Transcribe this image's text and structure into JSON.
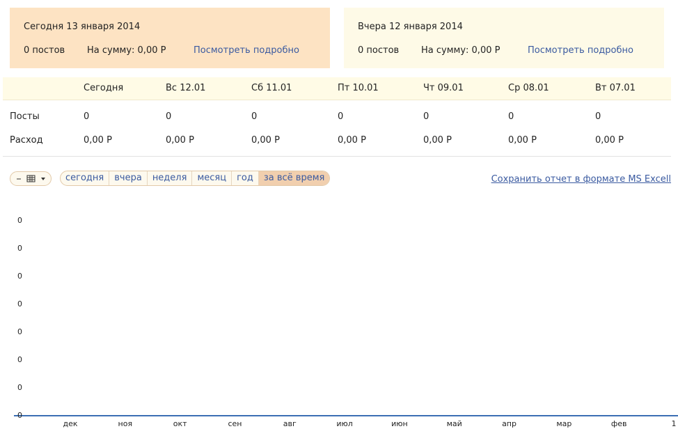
{
  "summary": [
    {
      "title": "Сегодня 13 января 2014",
      "posts": "0 постов",
      "sum": "На сумму: 0,00 Р",
      "link": "Посмотреть подробно"
    },
    {
      "title": "Вчера 12 января 2014",
      "posts": "0 постов",
      "sum": "На сумму: 0,00 Р",
      "link": "Посмотреть подробно"
    }
  ],
  "table": {
    "columns": [
      "Сегодня",
      "Вс 12.01",
      "Сб 11.01",
      "Пт 10.01",
      "Чт 09.01",
      "Ср 08.01",
      "Вт 07.01"
    ],
    "rows": [
      {
        "label": "Посты",
        "cells": [
          "0",
          "0",
          "0",
          "0",
          "0",
          "0",
          "0"
        ]
      },
      {
        "label": "Расход",
        "cells": [
          "0,00 Р",
          "0,00 Р",
          "0,00 Р",
          "0,00 Р",
          "0,00 Р",
          "0,00 Р",
          "0,00 Р"
        ]
      }
    ]
  },
  "periods": [
    "сегодня",
    "вчера",
    "неделя",
    "месяц",
    "год",
    "за всё время"
  ],
  "active_period": 5,
  "export_link": "Сохранить отчет в формате MS Excell",
  "chart": {
    "y_labels": [
      0,
      0,
      0,
      0,
      0,
      0,
      0,
      0
    ],
    "x_labels": [
      "дек",
      "ноя",
      "окт",
      "сен",
      "авг",
      "июл",
      "июн",
      "май",
      "апр",
      "мар",
      "фев",
      "1"
    ]
  }
}
